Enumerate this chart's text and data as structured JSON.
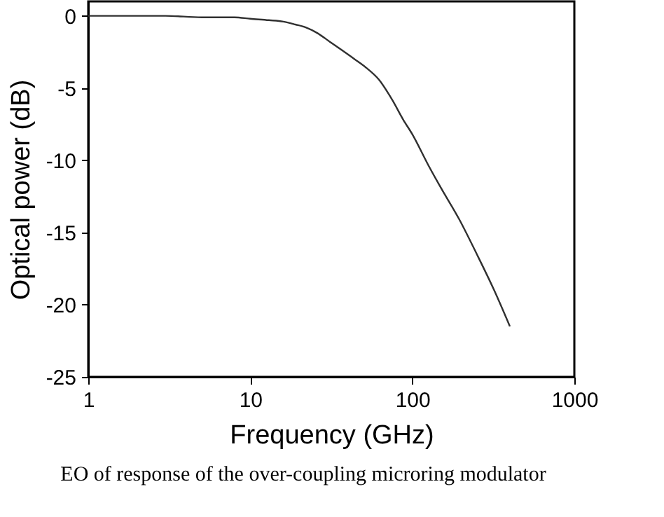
{
  "chart_data": {
    "type": "line",
    "xlabel": "Frequency (GHz)",
    "ylabel": "Optical power (dB)",
    "log": "x",
    "x": [
      1,
      2,
      3,
      5,
      8,
      10,
      13,
      16,
      19,
      22,
      26,
      31,
      37,
      44,
      52,
      62,
      75,
      88,
      100,
      125,
      150,
      195,
      250,
      320,
      400
    ],
    "series": [
      {
        "color": "#303030",
        "values": [
          0,
          0,
          0,
          -0.1,
          -0.1,
          -0.2,
          -0.3,
          -0.4,
          -0.6,
          -0.8,
          -1.2,
          -1.8,
          -2.4,
          -3.0,
          -3.6,
          -4.4,
          -5.8,
          -7.2,
          -8.2,
          -10.3,
          -11.9,
          -14.1,
          -16.5,
          -19.0,
          -21.5
        ]
      }
    ],
    "xlim": [
      1,
      1000
    ],
    "xticks": [
      1,
      10,
      100,
      1000
    ],
    "ylim": [
      -25,
      1
    ],
    "yticks": [
      -25,
      -20,
      -15,
      -10,
      -5,
      0
    ],
    "grid": false,
    "marker": "none",
    "line_style": "solid",
    "annotations": [
      "EO of response of the over-coupling microring modulator"
    ]
  }
}
